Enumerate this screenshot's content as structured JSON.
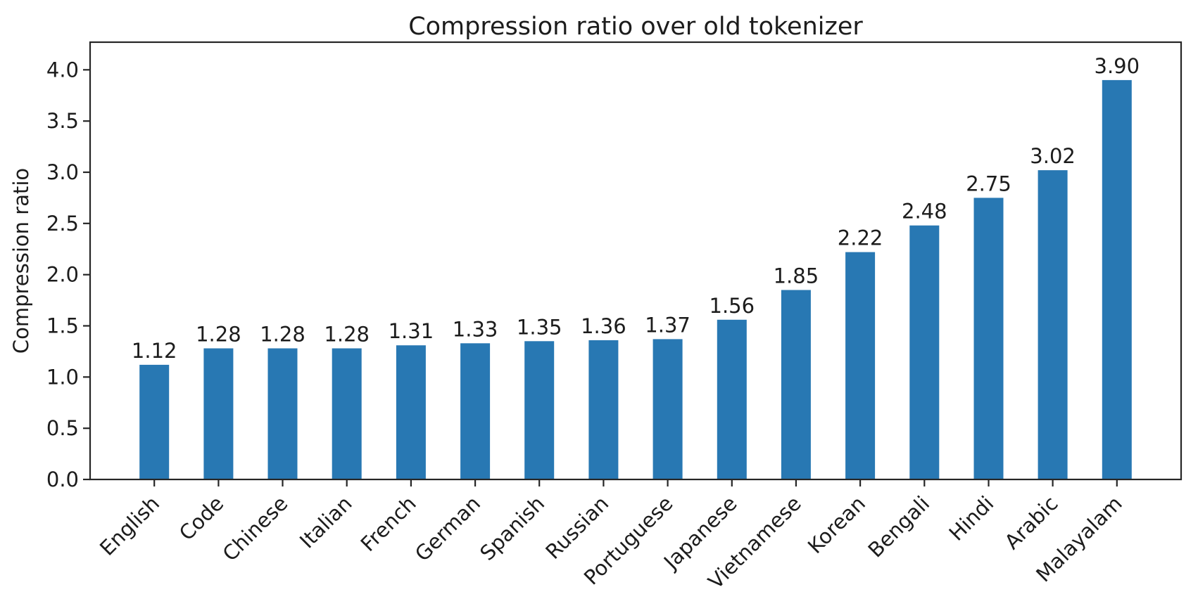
{
  "chart_data": {
    "type": "bar",
    "title": "Compression ratio over old tokenizer",
    "xlabel": "",
    "ylabel": "Compression ratio",
    "categories": [
      "English",
      "Code",
      "Chinese",
      "Italian",
      "French",
      "German",
      "Spanish",
      "Russian",
      "Portuguese",
      "Japanese",
      "Vietnamese",
      "Korean",
      "Bengali",
      "Hindi",
      "Arabic",
      "Malayalam"
    ],
    "values": [
      1.12,
      1.28,
      1.28,
      1.28,
      1.31,
      1.33,
      1.35,
      1.36,
      1.37,
      1.56,
      1.85,
      2.22,
      2.48,
      2.75,
      3.02,
      3.9
    ],
    "value_labels": [
      "1.12",
      "1.28",
      "1.28",
      "1.28",
      "1.31",
      "1.33",
      "1.35",
      "1.36",
      "1.37",
      "1.56",
      "1.85",
      "2.22",
      "2.48",
      "2.75",
      "3.02",
      "3.90"
    ],
    "ylim": [
      0,
      4.27
    ],
    "yticks": [
      0.0,
      0.5,
      1.0,
      1.5,
      2.0,
      2.5,
      3.0,
      3.5,
      4.0
    ],
    "ytick_labels": [
      "0.0",
      "0.5",
      "1.0",
      "1.5",
      "2.0",
      "2.5",
      "3.0",
      "3.5",
      "4.0"
    ],
    "xtick_rotation": 45,
    "grid": false,
    "legend": null,
    "bar_color": "#2878b3",
    "text_color": "#1c1c1c",
    "axis_color": "#262626",
    "background": "#ffffff"
  }
}
